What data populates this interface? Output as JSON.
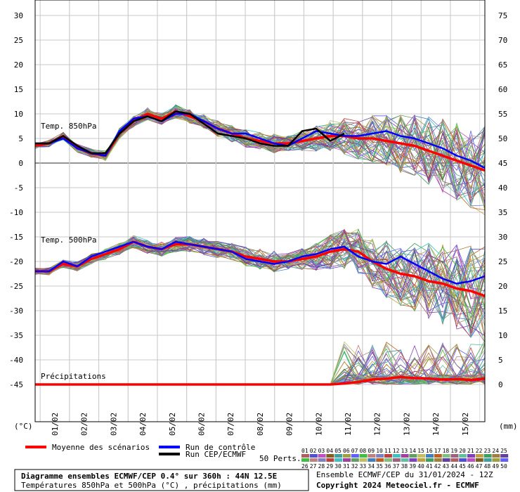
{
  "chart_data": {
    "type": "line",
    "left_axis": {
      "unit": "(°C)",
      "ticks": [
        30,
        25,
        20,
        15,
        10,
        5,
        0,
        -5,
        -10,
        -15,
        -20,
        -25,
        -30,
        -35,
        -40,
        -45
      ],
      "range": [
        -45,
        30
      ]
    },
    "right_axis": {
      "unit": "(mm)",
      "ticks": [
        75,
        70,
        65,
        60,
        55,
        50,
        45,
        40,
        35,
        30,
        25,
        20,
        15,
        10,
        5,
        0
      ],
      "range": [
        0,
        75
      ]
    },
    "x_ticks": [
      "01/02",
      "02/02",
      "03/02",
      "04/02",
      "05/02",
      "06/02",
      "07/02",
      "08/02",
      "09/02",
      "10/02",
      "11/02",
      "12/02",
      "13/02",
      "14/02",
      "15/02"
    ],
    "grid": true,
    "annotations": {
      "t850": "Temp. 850hPa",
      "t500": "Temp. 500hPa",
      "precip": "Précipitations"
    },
    "series": [
      {
        "name": "Moyenne des scénarios",
        "color": "#ff0000",
        "t850": [
          3.5,
          4,
          5.5,
          3,
          2,
          1.5,
          6,
          8.5,
          10,
          9,
          10.5,
          9.5,
          8.5,
          7,
          6,
          5,
          4.5,
          4,
          4,
          4.5,
          5,
          5.5,
          5.5,
          5,
          5,
          4.5,
          4,
          3.5,
          2.5,
          1.5,
          0.5,
          -0.5,
          -1.5
        ],
        "t500": [
          -22,
          -22,
          -20.5,
          -21,
          -19.5,
          -18.5,
          -17.5,
          -16,
          -17,
          -17.5,
          -16.5,
          -16.5,
          -17,
          -17.5,
          -18,
          -19,
          -19.5,
          -20,
          -20,
          -19.5,
          -19,
          -18,
          -17.5,
          -18,
          -20,
          -21.5,
          -22.5,
          -23,
          -24,
          -24.5,
          -25.5,
          -26,
          -27
        ],
        "precip": [
          0,
          0,
          0,
          0,
          0,
          0,
          0,
          0,
          0,
          0,
          0,
          0,
          0,
          0,
          0,
          0,
          0,
          0,
          0,
          0,
          0,
          0,
          0.2,
          0.5,
          1,
          1.2,
          1.5,
          1.3,
          1.2,
          1,
          1.1,
          0.9,
          1.2
        ]
      },
      {
        "name": "Run de contrôle",
        "color": "#0000ff",
        "t850": [
          4,
          4,
          5,
          3,
          2,
          1.5,
          6.5,
          9,
          9.5,
          8.5,
          10,
          10,
          8.5,
          7,
          6,
          6,
          5,
          4,
          3.5,
          5,
          6.5,
          6,
          5.5,
          5.5,
          6,
          6.5,
          5.5,
          5,
          4,
          3,
          1.5,
          0.5,
          -1
        ],
        "t500": [
          -22,
          -22,
          -20,
          -21,
          -19,
          -18,
          -17,
          -16,
          -17,
          -17.5,
          -16,
          -16.5,
          -17,
          -17.5,
          -18,
          -19.5,
          -20,
          -20.5,
          -20,
          -19,
          -18.5,
          -17.5,
          -17,
          -19,
          -20,
          -20.5,
          -19,
          -20.5,
          -22,
          -23.5,
          -24.5,
          -24,
          -23
        ]
      },
      {
        "name": "Run CEP/ECMWF",
        "color": "#000000",
        "t850": [
          4,
          4,
          5.5,
          3.5,
          2,
          2,
          6,
          8.5,
          9.5,
          8.5,
          10.5,
          10,
          8,
          6,
          5.5,
          5,
          4,
          3.5,
          3.5,
          6.5,
          7,
          4.5,
          6
        ]
      }
    ],
    "legend": {
      "mean_label": "Moyenne des scénarios",
      "control_label": "Run de contrôle",
      "ecmwf_label": "Run CEP/ECMWF",
      "perts_label": "50 Perts.",
      "perts_row1": [
        "01",
        "02",
        "03",
        "04",
        "05",
        "06",
        "07",
        "08",
        "09",
        "10",
        "11",
        "12",
        "13",
        "14",
        "15",
        "16",
        "17",
        "18",
        "19",
        "20",
        "21",
        "22",
        "23",
        "24",
        "25"
      ],
      "perts_row2": [
        "26",
        "27",
        "28",
        "29",
        "30",
        "31",
        "32",
        "33",
        "34",
        "35",
        "36",
        "37",
        "38",
        "39",
        "40",
        "41",
        "42",
        "43",
        "44",
        "45",
        "46",
        "47",
        "48",
        "49",
        "50"
      ],
      "perts_colors": [
        "#b06060",
        "#5050d0",
        "#c050c0",
        "#806020",
        "#40a0a0",
        "#a0a040",
        "#6060ff",
        "#40c040",
        "#c08080",
        "#8080c0",
        "#c04040",
        "#40c0c0",
        "#a040a0",
        "#60a060",
        "#c0c060",
        "#4080c0",
        "#c06020",
        "#80c080",
        "#a06080",
        "#60c0a0",
        "#8040c0",
        "#c0a040",
        "#40a060",
        "#a08040",
        "#6040a0"
      ]
    },
    "caption": {
      "title": "Diagramme ensembles ECMWF/CEP 0.4° sur 360h : 44N 12.5E",
      "subtitle": "Températures 850hPa et 500hPa (°C) , précipitations (mm)",
      "run": "Ensemble ECMWF/CEP du 31/01/2024 - 12Z",
      "copyright": "Copyright 2024 Meteociel.fr - ECMWF"
    }
  }
}
